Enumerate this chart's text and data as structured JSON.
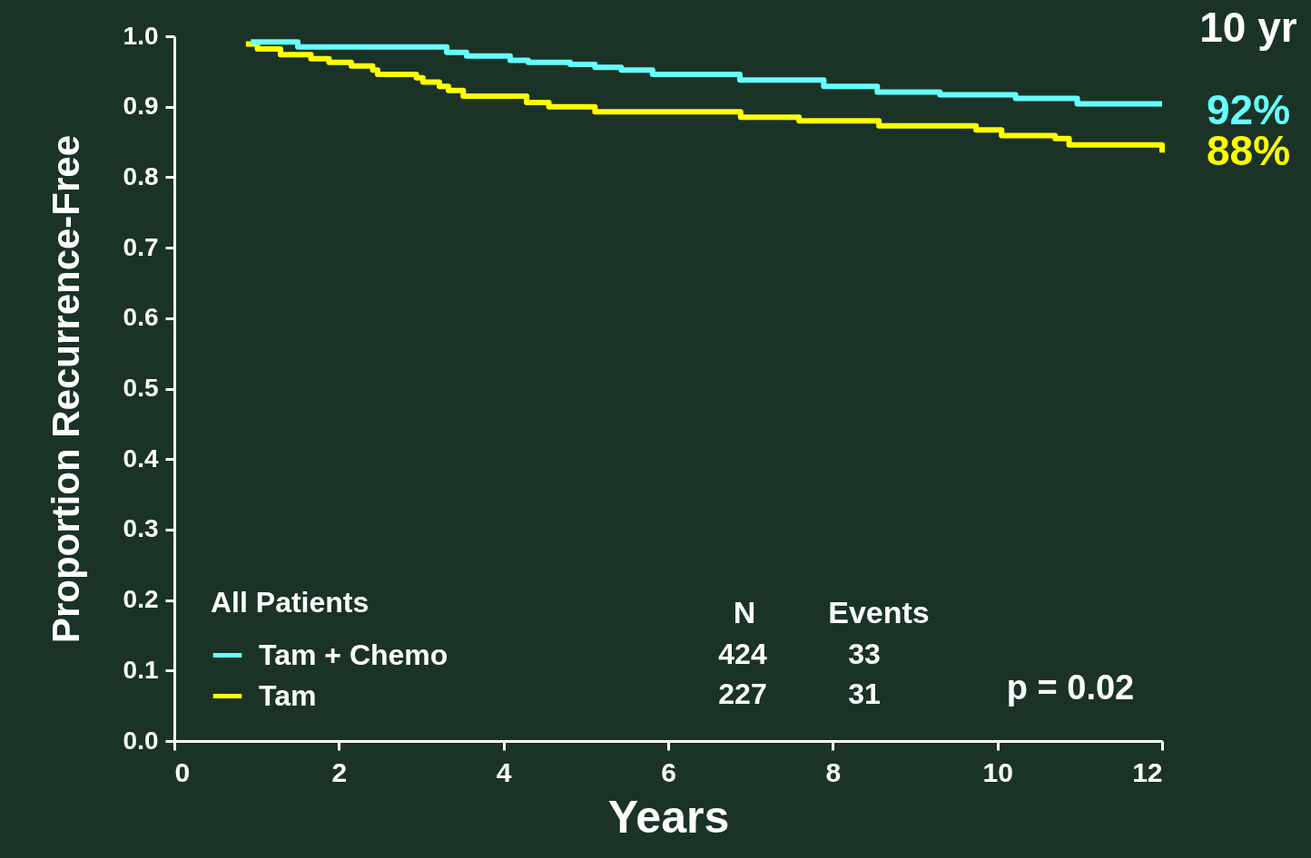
{
  "chart_data": {
    "type": "step",
    "xlabel": "Years",
    "ylabel": "Proportion Recurrence-Free",
    "legend_title": "All Patients",
    "legend": "bottom left",
    "grid": false,
    "marker": "none",
    "line_style": "solid",
    "xlim": [
      0,
      12
    ],
    "xticks": [
      0,
      2,
      4,
      6,
      8,
      10,
      12
    ],
    "ylim": [
      0,
      1
    ],
    "yticks": [
      {
        "value": 0,
        "label": "0.0"
      },
      0.1,
      0.2,
      0.3,
      0.4,
      0.5,
      0.6,
      0.7,
      0.8,
      0.9,
      {
        "value": 1,
        "label": "1.0"
      }
    ],
    "series": [
      {
        "name": "Tam + Chemo",
        "color": "#66ffff",
        "x": [
          0.93,
          1.5,
          3.31,
          3.55,
          4.08,
          4.3,
          4.81,
          5.11,
          5.43,
          5.81,
          6.87,
          7.89,
          8.54,
          9.3,
          10.22,
          10.97,
          12
        ],
        "values": [
          0.992,
          0.985,
          0.977,
          0.972,
          0.966,
          0.963,
          0.96,
          0.956,
          0.952,
          0.946,
          0.938,
          0.929,
          0.921,
          0.917,
          0.912,
          0.904,
          0.904
        ]
      },
      {
        "name": "Tam",
        "color": "#ffff00",
        "x": [
          0.87,
          1.01,
          1.29,
          1.66,
          1.88,
          2.15,
          2.41,
          2.47,
          2.94,
          3.02,
          3.22,
          3.33,
          3.51,
          4.28,
          4.55,
          5.11,
          6.88,
          7.59,
          8.56,
          9.74,
          10.05,
          10.7,
          10.87,
          12,
          12
        ],
        "values": [
          0.989,
          0.982,
          0.974,
          0.968,
          0.963,
          0.958,
          0.952,
          0.946,
          0.941,
          0.935,
          0.929,
          0.923,
          0.915,
          0.906,
          0.9,
          0.893,
          0.885,
          0.88,
          0.873,
          0.867,
          0.859,
          0.855,
          0.846,
          0.846,
          0.835
        ]
      }
    ],
    "annotations": [
      "10 yr",
      "N",
      "Events",
      "424",
      "33",
      "227",
      "31",
      "p = 0.02",
      {
        "text": "92%",
        "x": 12,
        "y": 0.904
      },
      {
        "text": "88%",
        "x": 12,
        "y": 0.846
      }
    ]
  }
}
